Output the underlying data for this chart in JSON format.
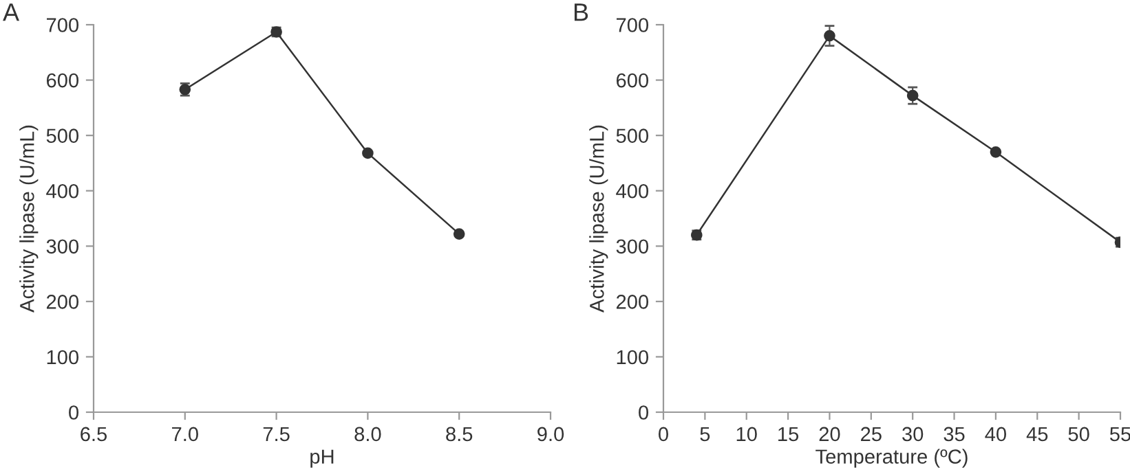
{
  "chart_data": [
    {
      "type": "line",
      "title": "A",
      "xlabel": "pH",
      "ylabel": "Activity lipase (U/mL)",
      "x": [
        7.0,
        7.5,
        8.0,
        8.5
      ],
      "series": [
        {
          "color": "#333333",
          "values": [
            583,
            687,
            468,
            322
          ],
          "errors": [
            11,
            8,
            null,
            null
          ]
        }
      ],
      "xlim": [
        6.5,
        9.0
      ],
      "ylim": [
        0,
        700
      ],
      "xticks": [
        6.5,
        {
          "value": 7,
          "label": "7.0"
        },
        7.5,
        {
          "value": 8,
          "label": "8.0"
        },
        8.5,
        {
          "value": 9,
          "label": "9.0"
        }
      ],
      "yticks": [
        0,
        100,
        200,
        300,
        400,
        500,
        600,
        700
      ],
      "marker": "circle",
      "grid": false
    },
    {
      "type": "line",
      "title": "B",
      "xlabel": "Temperature (ºC)",
      "ylabel": "Activity lipase (U/mL)",
      "x": [
        4,
        20,
        30,
        40,
        55
      ],
      "series": [
        {
          "color": "#333333",
          "values": [
            320,
            680,
            572,
            470,
            307
          ],
          "errors": [
            8,
            18,
            15,
            null,
            8
          ]
        }
      ],
      "xlim": [
        0,
        55
      ],
      "ylim": [
        0,
        700
      ],
      "xticks": [
        0,
        5,
        10,
        15,
        20,
        25,
        30,
        35,
        40,
        45,
        50,
        55
      ],
      "yticks": [
        0,
        100,
        200,
        300,
        400,
        500,
        600,
        700
      ],
      "marker": "circle",
      "grid": false
    }
  ]
}
